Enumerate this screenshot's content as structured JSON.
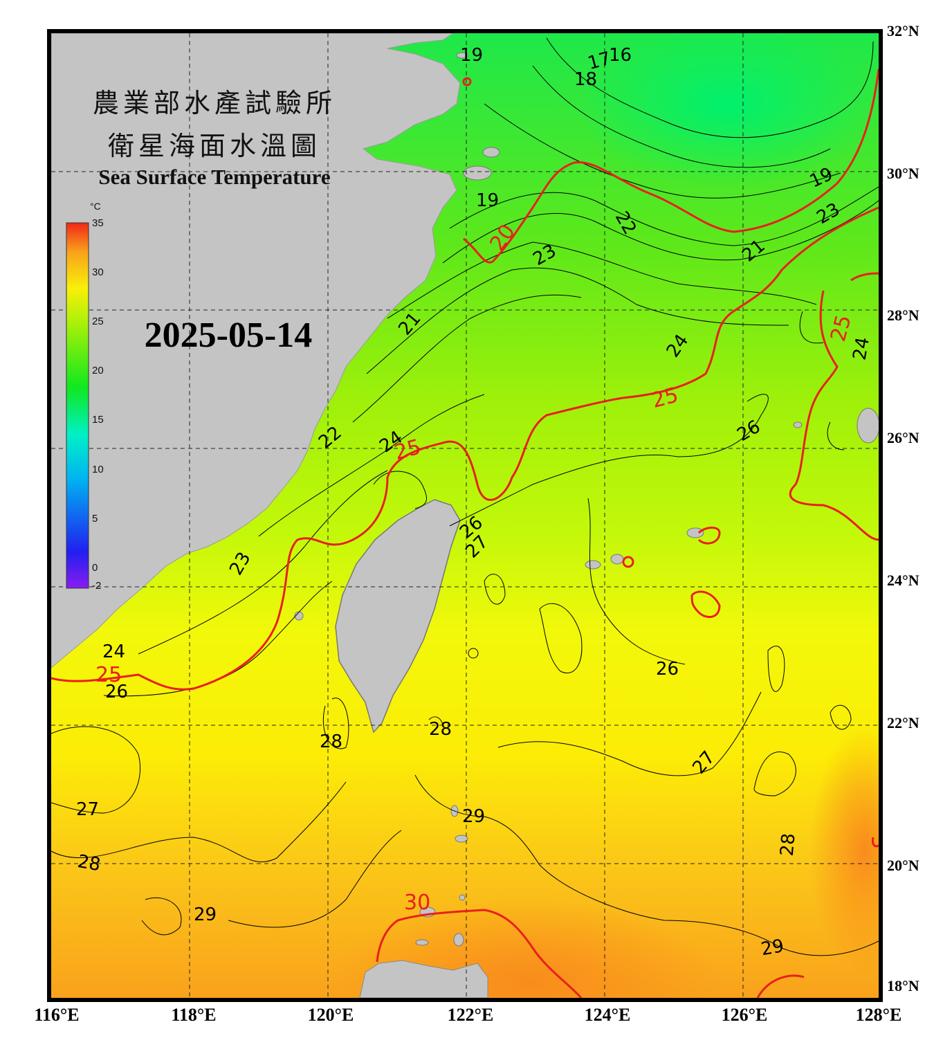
{
  "title": {
    "line1": "農業部水產試驗所",
    "line2": "衛星海面水溫圖",
    "english": "Sea Surface Temperature"
  },
  "date": "2025-05-14",
  "colorbar": {
    "unit": "°C",
    "min": -2,
    "max": 35,
    "ticks": [
      "35",
      "30",
      "25",
      "20",
      "15",
      "10",
      "5",
      "0",
      "-2"
    ]
  },
  "axes": {
    "longitude_labels": [
      "116°E",
      "118°E",
      "120°E",
      "122°E",
      "124°E",
      "126°E",
      "128°E"
    ],
    "latitude_labels": [
      "32°N",
      "30°N",
      "28°N",
      "26°N",
      "24°N",
      "22°N",
      "20°N",
      "18°N"
    ],
    "lon_range": [
      116,
      128
    ],
    "lat_range": [
      18,
      32
    ]
  },
  "contour_labels": {
    "black": [
      "19",
      "16",
      "17",
      "18",
      "19",
      "22",
      "23",
      "19",
      "23",
      "21",
      "21",
      "24",
      "24",
      "26",
      "22",
      "24",
      "26",
      "27",
      "23",
      "24",
      "26",
      "26",
      "28",
      "28",
      "27",
      "27",
      "29",
      "28",
      "28",
      "29",
      "29"
    ],
    "red": [
      "20",
      "25",
      "25",
      "25",
      "25",
      "30"
    ]
  },
  "colors": {
    "land": "#c4c4c4",
    "contour_red": "#e8201c",
    "contour_black": "#000000",
    "frame": "#000000"
  }
}
